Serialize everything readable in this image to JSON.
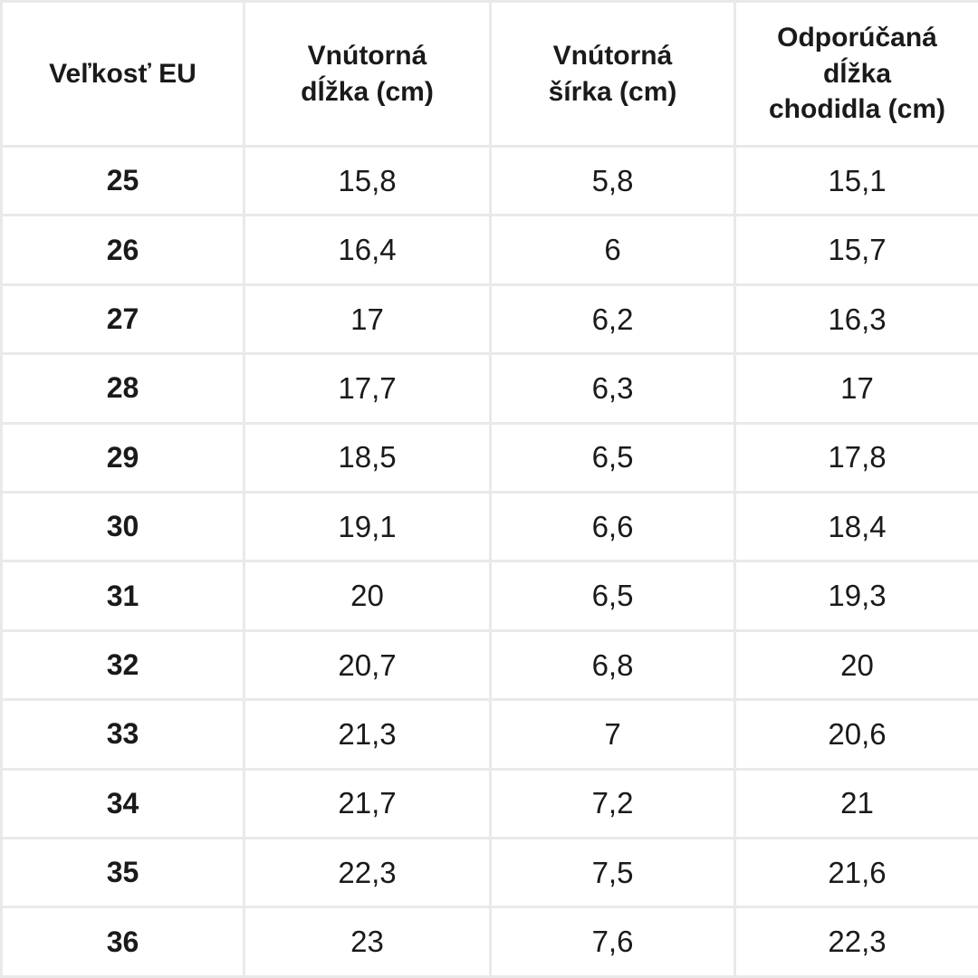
{
  "chart_data": {
    "type": "table",
    "columns": [
      "Veľkosť EU",
      "Vnútorná\ndĺžka (cm)",
      "Vnútorná\nšírka (cm)",
      "Odporúčaná\ndĺžka\nchodidla (cm)"
    ],
    "rows": [
      [
        "25",
        "15,8",
        "5,8",
        "15,1"
      ],
      [
        "26",
        "16,4",
        "6",
        "15,7"
      ],
      [
        "27",
        "17",
        "6,2",
        "16,3"
      ],
      [
        "28",
        "17,7",
        "6,3",
        "17"
      ],
      [
        "29",
        "18,5",
        "6,5",
        "17,8"
      ],
      [
        "30",
        "19,1",
        "6,6",
        "18,4"
      ],
      [
        "31",
        "20",
        "6,5",
        "19,3"
      ],
      [
        "32",
        "20,7",
        "6,8",
        "20"
      ],
      [
        "33",
        "21,3",
        "7",
        "20,6"
      ],
      [
        "34",
        "21,7",
        "7,2",
        "21"
      ],
      [
        "35",
        "22,3",
        "7,5",
        "21,6"
      ],
      [
        "36",
        "23",
        "7,6",
        "22,3"
      ]
    ]
  },
  "colors": {
    "background": "#ffffff",
    "border": "#e9e9e9",
    "text": "#1a1a1a"
  }
}
